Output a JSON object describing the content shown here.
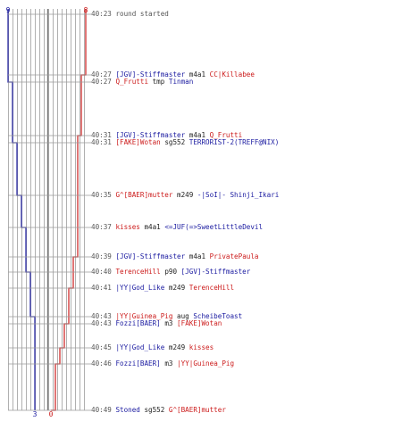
{
  "round_timeline": {
    "start_counts": {
      "blue": "9",
      "red": "8"
    },
    "end_counts": {
      "blue": "3",
      "red": "0"
    },
    "colors": {
      "blue": "#1a1aa0",
      "red": "#cc1b1b",
      "gray": "#555555"
    },
    "events": [
      {
        "time": "40:23",
        "type": "info",
        "text": "round started"
      },
      {
        "time": "40:27",
        "killer": "[JGV]-Stiffmaster",
        "killer_team": "blue",
        "weapon": "m4a1",
        "victim": "CC|Killabee",
        "victim_team": "red"
      },
      {
        "time": "40:27",
        "killer": "Q_Frutti",
        "killer_team": "red",
        "weapon": "tmp",
        "victim": "Tinman",
        "victim_team": "blue"
      },
      {
        "time": "40:31",
        "killer": "[JGV]-Stiffmaster",
        "killer_team": "blue",
        "weapon": "m4a1",
        "victim": "Q_Frutti",
        "victim_team": "red"
      },
      {
        "time": "40:31",
        "killer": "[FAKE]Wotan",
        "killer_team": "red",
        "weapon": "sg552",
        "victim": "TERRORIST-2(TREFF@NIX)",
        "victim_team": "blue"
      },
      {
        "time": "40:35",
        "killer": "G^[BAER]mutter",
        "killer_team": "red",
        "weapon": "m249",
        "victim": "-|SoI|- Shinji_Ikari",
        "victim_team": "blue"
      },
      {
        "time": "40:37",
        "killer": "kisses",
        "killer_team": "red",
        "weapon": "m4a1",
        "victim": "<=JUF(=>SweetLittleDevil",
        "victim_team": "blue"
      },
      {
        "time": "40:39",
        "killer": "[JGV]-Stiffmaster",
        "killer_team": "blue",
        "weapon": "m4a1",
        "victim": "PrivatePaula",
        "victim_team": "red"
      },
      {
        "time": "40:40",
        "killer": "TerenceHill",
        "killer_team": "red",
        "weapon": "p90",
        "victim": "[JGV]-Stiffmaster",
        "victim_team": "blue"
      },
      {
        "time": "40:41",
        "killer": "|YY|God_Like",
        "killer_team": "blue",
        "weapon": "m249",
        "victim": "TerenceHill",
        "victim_team": "red"
      },
      {
        "time": "40:43",
        "killer": "|YY|Guinea_Pig",
        "killer_team": "red",
        "weapon": "aug",
        "victim": "ScheibeToast",
        "victim_team": "blue"
      },
      {
        "time": "40:43",
        "killer": "Fozzi[BAER]",
        "killer_team": "blue",
        "weapon": "m3",
        "victim": "[FAKE]Wotan",
        "victim_team": "red"
      },
      {
        "time": "40:45",
        "killer": "|YY|God_Like",
        "killer_team": "blue",
        "weapon": "m249",
        "victim": "kisses",
        "victim_team": "red"
      },
      {
        "time": "40:46",
        "killer": "Fozzi[BAER]",
        "killer_team": "blue",
        "weapon": "m3",
        "victim": "|YY|Guinea_Pig",
        "victim_team": "red"
      },
      {
        "time": "40:49",
        "killer": "Stoned",
        "killer_team": "blue",
        "weapon": "sg552",
        "victim": "G^[BAER]mutter",
        "victim_team": "red"
      }
    ]
  }
}
